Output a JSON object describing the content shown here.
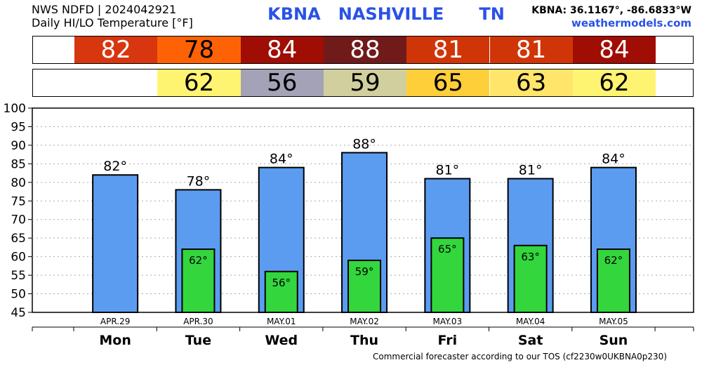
{
  "header": {
    "line1": "NWS NDFD | 2024042921",
    "line2": "Daily HI/LO Temperature [°F]",
    "station": "KBNA   NASHVILLE      TN",
    "coords": "KBNA: 36.1167°, -86.6833°W",
    "site": "weathermodels.com"
  },
  "footer": "Commercial forecaster according to our TOS (cf2230w0UKBNA0p230)",
  "colors": {
    "hi_bar": "#5b9cf0",
    "lo_bar": "#33d63d",
    "hi_strip": [
      "#d8360f",
      "#fe6205",
      "#a00d04",
      "#701a1a",
      "#d03508",
      "#d03508",
      "#a00d04"
    ],
    "lo_strip": [
      null,
      "#fff471",
      "#a3a2b6",
      "#d2cf9e",
      "#ffcf3a",
      "#ffe66b",
      "#fff471"
    ],
    "hi_strip_text": [
      "#ffffff",
      "#000000",
      "#ffffff",
      "#ffffff",
      "#ffffff",
      "#ffffff",
      "#ffffff"
    ],
    "lo_strip_text": [
      "#000000",
      "#000000",
      "#000000",
      "#000000",
      "#000000",
      "#000000",
      "#000000"
    ]
  },
  "chart_data": {
    "type": "bar",
    "categories": [
      "Mon",
      "Tue",
      "Wed",
      "Thu",
      "Fri",
      "Sat",
      "Sun"
    ],
    "dates": [
      "APR.29",
      "APR.30",
      "MAY.01",
      "MAY.02",
      "MAY.03",
      "MAY.04",
      "MAY.05"
    ],
    "series": [
      {
        "name": "HI",
        "values": [
          82,
          78,
          84,
          88,
          81,
          81,
          84
        ]
      },
      {
        "name": "LO",
        "values": [
          null,
          62,
          56,
          59,
          65,
          63,
          62
        ]
      }
    ],
    "ylim": [
      45,
      100
    ],
    "yticks": [
      45,
      50,
      55,
      60,
      65,
      70,
      75,
      80,
      85,
      90,
      95,
      100
    ],
    "grid": true
  }
}
